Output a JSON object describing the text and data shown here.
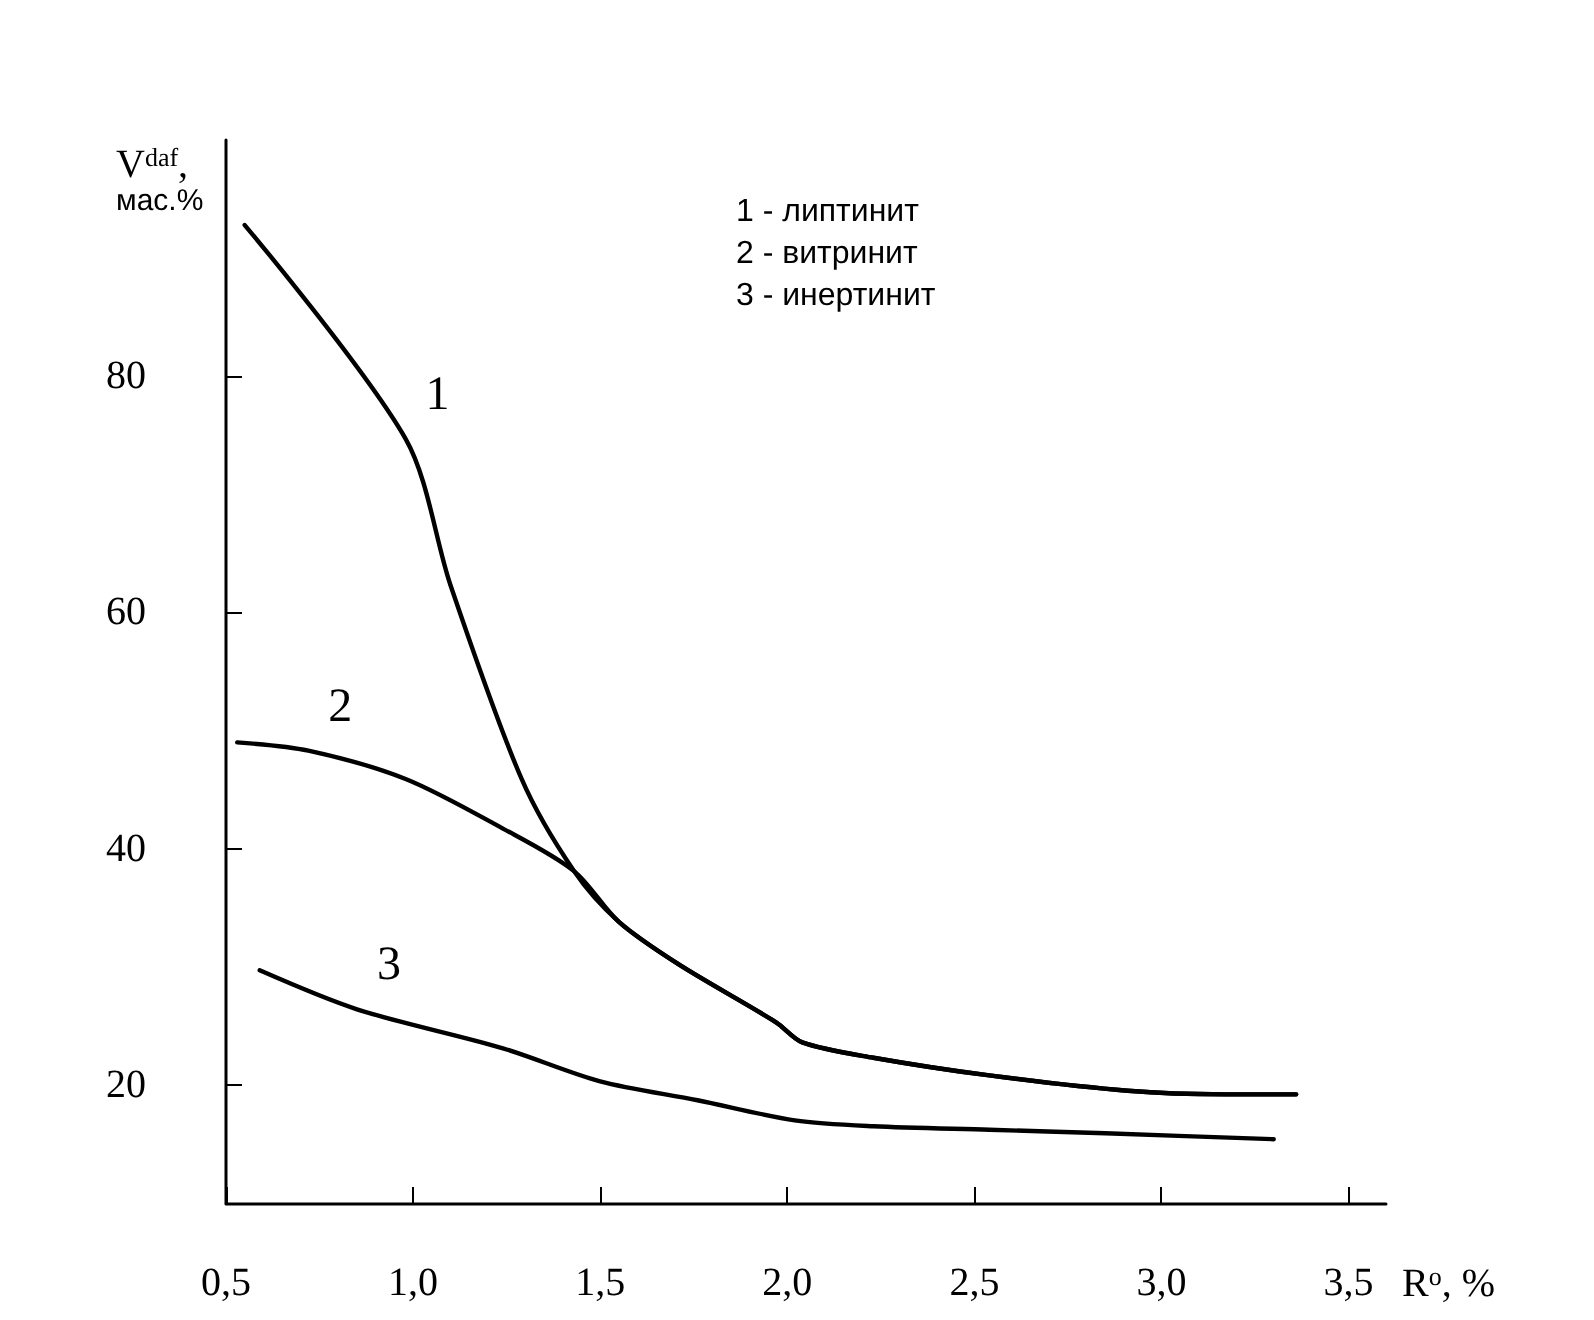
{
  "chart_data": {
    "type": "line",
    "xlabel": "R$^{o}$, %",
    "ylabel": "V$^{daf}$, мас.%",
    "xlim": [
      0.5,
      3.6
    ],
    "xticks": [
      {
        "value": 0.5,
        "label": "0,5"
      },
      {
        "value": 1.0,
        "label": "1,0"
      },
      {
        "value": 1.5,
        "label": "1,5"
      },
      {
        "value": 2.0,
        "label": "2,0"
      },
      {
        "value": 2.5,
        "label": "2,5"
      },
      {
        "value": 3.0,
        "label": "3,0"
      },
      {
        "value": 3.5,
        "label": "3,5"
      }
    ],
    "ylim": [
      10,
      100
    ],
    "yticks": [
      20,
      40,
      60,
      80
    ],
    "grid": false,
    "legend": false,
    "marker": "none",
    "line_style": "solid",
    "series": [
      {
        "name": "1",
        "color": "#000000",
        "x": [
          0.55,
          0.98,
          1.1,
          1.29,
          1.43,
          1.55,
          1.71,
          1.97,
          2.04,
          2.23,
          2.54,
          2.91,
          3.17,
          3.36
        ],
        "values": [
          92.8,
          74.7,
          62.3,
          45.9,
          38.1,
          33.8,
          30.2,
          25.3,
          23.6,
          22.3,
          20.8,
          19.5,
          19.2,
          19.2
        ]
      },
      {
        "name": "2",
        "color": "#000000",
        "x": [
          0.53,
          0.72,
          0.98,
          1.24,
          1.43,
          1.55,
          1.71,
          1.97,
          2.04,
          2.23,
          2.54,
          2.91,
          3.17,
          3.36
        ],
        "values": [
          49,
          48.3,
          45.9,
          41.7,
          38.1,
          33.8,
          30.2,
          25.3,
          23.6,
          22.3,
          20.8,
          19.5,
          19.2,
          19.2
        ]
      },
      {
        "name": "3",
        "color": "#000000",
        "x": [
          0.59,
          0.85,
          1.24,
          1.5,
          1.76,
          2.02,
          2.23,
          2.54,
          2.85,
          3.3
        ],
        "values": [
          29.7,
          26.4,
          23.1,
          20.3,
          18.7,
          17,
          16.5,
          16.2,
          15.9,
          15.4
        ]
      }
    ],
    "annotations": [
      "1 - липтинит",
      "2 - витринит",
      "3 - инертинит"
    ]
  }
}
